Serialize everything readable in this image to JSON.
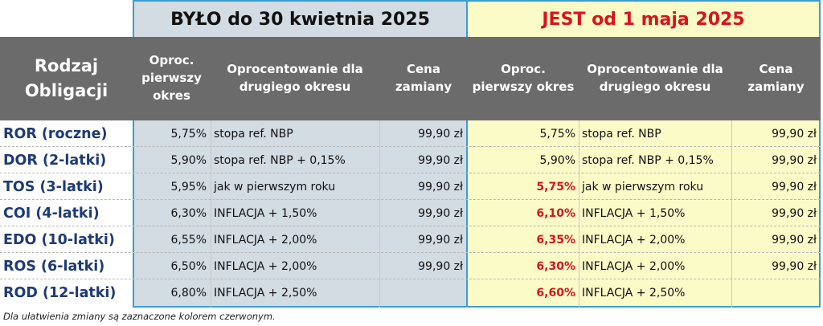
{
  "top": {
    "old_label": "BYŁO do 30 kwietnia 2025",
    "new_label": "JEST od 1 maja 2025"
  },
  "header": {
    "type": [
      "Rodzaj",
      "Obligacji"
    ],
    "first_rate": [
      "Oproc.",
      "pierwszy",
      "okres"
    ],
    "second_rate": [
      "Oprocentowanie dla",
      "drugiego okresu"
    ],
    "price": [
      "Cena",
      "zamiany"
    ],
    "new_first_rate": [
      "Oproc.",
      "pierwszy okres"
    ],
    "new_second_rate": [
      "Oprocentowanie dla",
      "drugiego okresu"
    ],
    "new_price": [
      "Cena",
      "zamiany"
    ]
  },
  "rows": [
    {
      "name": "ROR (roczne)",
      "old_rate": "5,75%",
      "old_second": "stopa ref. NBP",
      "old_price": "99,90 zł",
      "new_rate": "5,75%",
      "new_rate_changed": false,
      "new_second": "stopa ref. NBP",
      "new_price": "99,90 zł"
    },
    {
      "name": "DOR (2-latki)",
      "old_rate": "5,90%",
      "old_second": "stopa ref. NBP + 0,15%",
      "old_price": "99,90 zł",
      "new_rate": "5,90%",
      "new_rate_changed": false,
      "new_second": "stopa ref. NBP + 0,15%",
      "new_price": "99,90 zł"
    },
    {
      "name": "TOS (3-latki)",
      "old_rate": "5,95%",
      "old_second": "jak w pierwszym roku",
      "old_price": "99,90 zł",
      "new_rate": "5,75%",
      "new_rate_changed": true,
      "new_second": "jak w pierwszym roku",
      "new_price": "99,90 zł"
    },
    {
      "name": "COI (4-latki)",
      "old_rate": "6,30%",
      "old_second": "INFLACJA + 1,50%",
      "old_price": "99,90 zł",
      "new_rate": "6,10%",
      "new_rate_changed": true,
      "new_second": "INFLACJA + 1,50%",
      "new_price": "99,90 zł"
    },
    {
      "name": "EDO (10-latki)",
      "old_rate": "6,55%",
      "old_second": "INFLACJA + 2,00%",
      "old_price": "99,90 zł",
      "new_rate": "6,35%",
      "new_rate_changed": true,
      "new_second": "INFLACJA + 2,00%",
      "new_price": "99,90 zł"
    },
    {
      "name": "ROS (6-latki)",
      "old_rate": "6,50%",
      "old_second": "INFLACJA + 2,00%",
      "old_price": "99,90 zł",
      "new_rate": "6,30%",
      "new_rate_changed": true,
      "new_second": "INFLACJA + 2,00%",
      "new_price": "99,90 zł"
    },
    {
      "name": "ROD (12-latki)",
      "old_rate": "6,80%",
      "old_second": "INFLACJA + 2,50%",
      "old_price": "",
      "new_rate": "6,60%",
      "new_rate_changed": true,
      "new_second": "INFLACJA + 2,50%",
      "new_price": ""
    }
  ],
  "footnote": "Dla ułatwienia zmiany są zaznaczone kolorem czerwonym.",
  "colors": {
    "old_bg": "#d3dbe3",
    "new_bg": "#fbfbc8",
    "header_bg": "#6b6b6b",
    "accent_red": "#d7141c",
    "border_blue": "#3a9fd1",
    "name_blue": "#1d3b74"
  }
}
